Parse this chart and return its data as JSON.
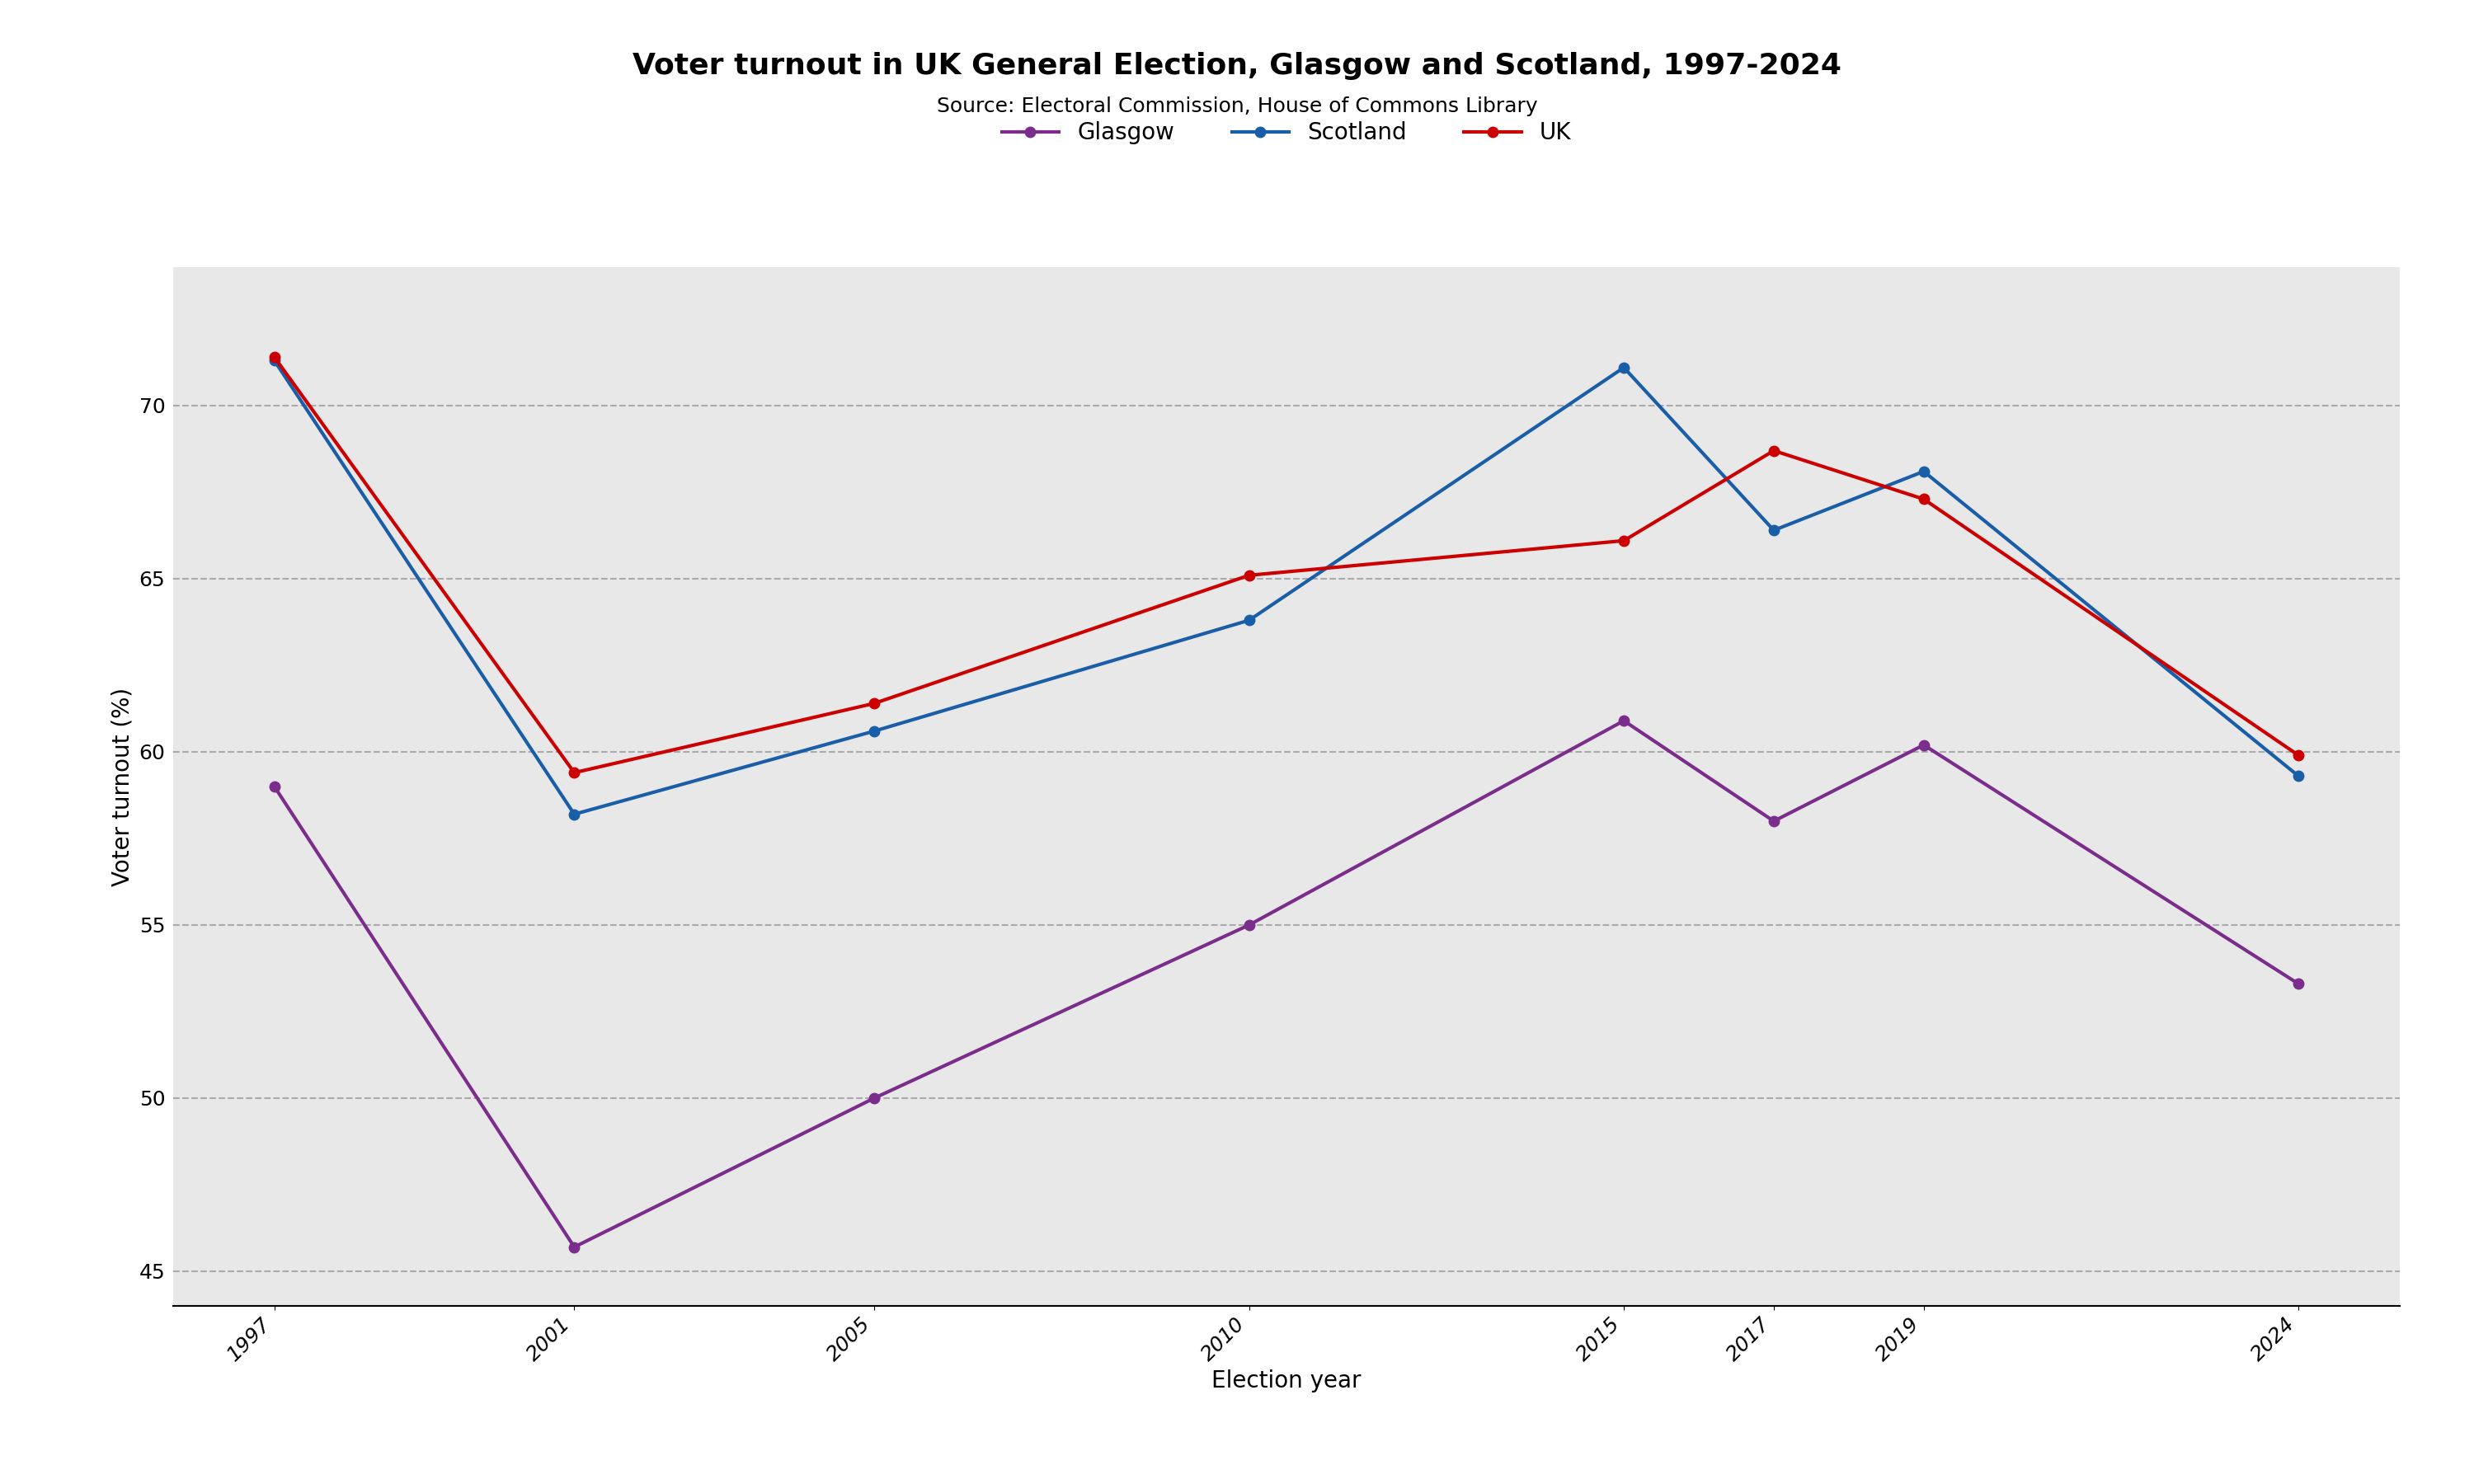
{
  "title": "Voter turnout in UK General Election, Glasgow and Scotland, 1997-2024",
  "subtitle": "Source: Electoral Commission, House of Commons Library",
  "xlabel": "Election year",
  "ylabel": "Voter turnout (%)",
  "years": [
    1997,
    2001,
    2005,
    2010,
    2015,
    2017,
    2019,
    2024
  ],
  "glasgow": [
    59.0,
    45.7,
    50.0,
    55.0,
    60.9,
    58.0,
    60.2,
    53.3
  ],
  "scotland": [
    71.3,
    58.2,
    60.6,
    63.8,
    71.1,
    66.4,
    68.1,
    59.3
  ],
  "uk": [
    71.4,
    59.4,
    61.4,
    65.1,
    66.1,
    68.7,
    67.3,
    59.9
  ],
  "glasgow_color": "#7B2D8B",
  "scotland_color": "#1A5EA8",
  "uk_color": "#CC0000",
  "background_color": "#E8E8E8",
  "fig_background": "#FFFFFF",
  "ylim": [
    44,
    74
  ],
  "yticks": [
    45,
    50,
    55,
    60,
    65,
    70
  ],
  "legend_labels": [
    "Glasgow",
    "Scotland",
    "UK"
  ],
  "title_fontsize": 26,
  "subtitle_fontsize": 18,
  "axis_label_fontsize": 20,
  "tick_fontsize": 18,
  "legend_fontsize": 20,
  "linewidth": 3.0,
  "marker_size": 9
}
